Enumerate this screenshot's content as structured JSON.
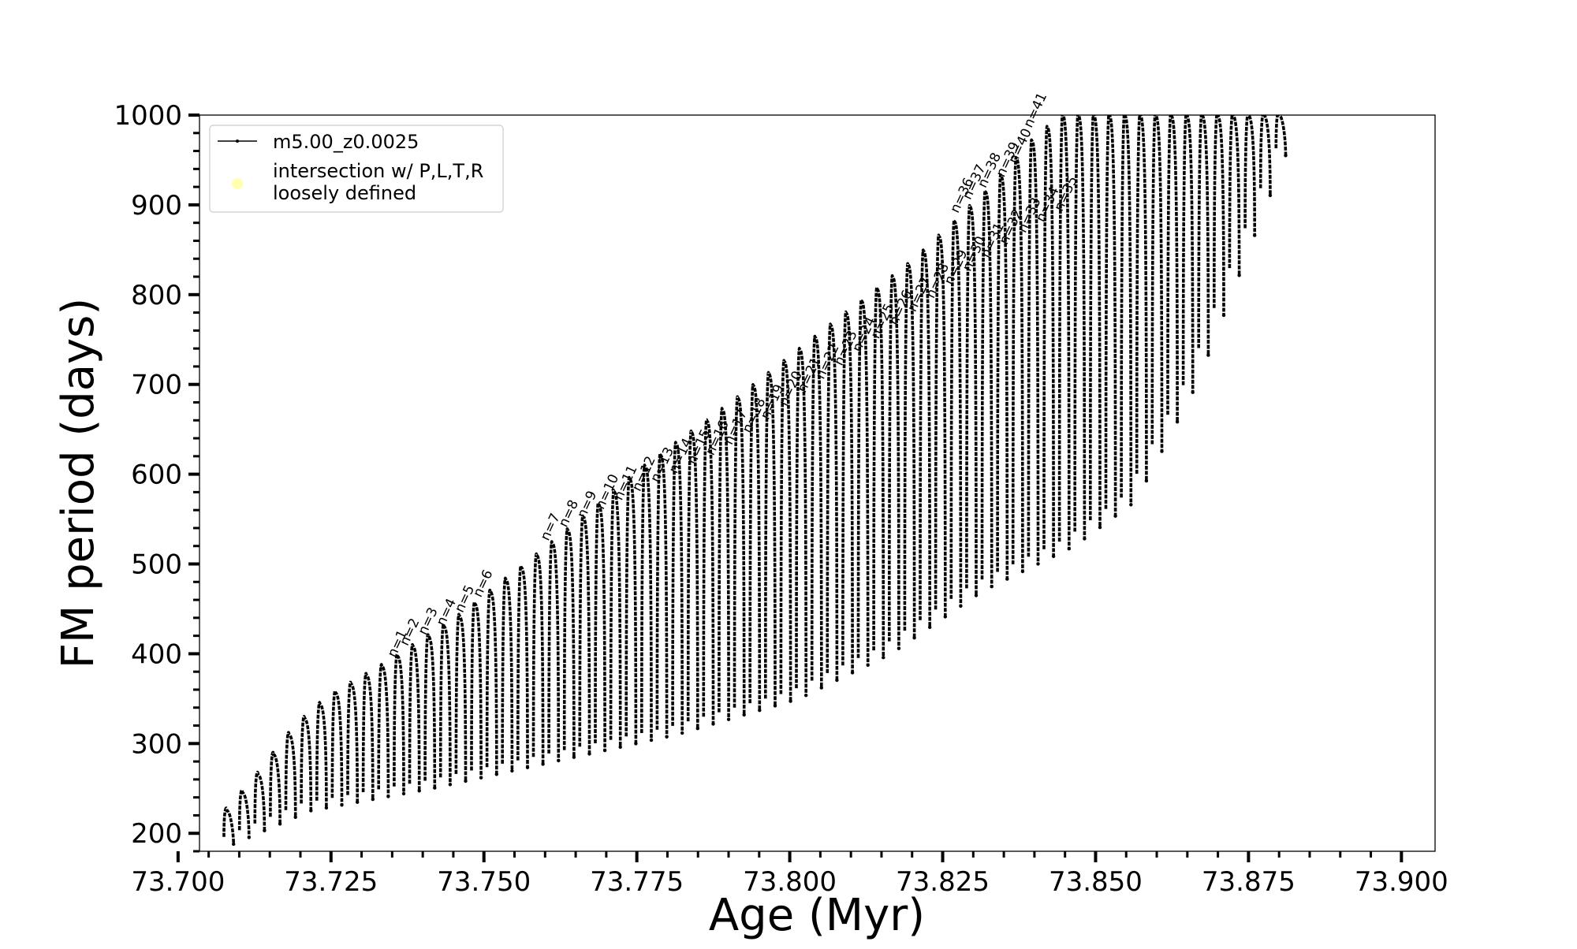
{
  "chart_data": {
    "type": "line",
    "title": "",
    "xlabel": "Age (Myr)",
    "ylabel": "FM period (days)",
    "xlim": [
      73.7035,
      73.9055
    ],
    "ylim": [
      180,
      1000
    ],
    "x_ticks": [
      73.7,
      73.725,
      73.75,
      73.775,
      73.8,
      73.825,
      73.85,
      73.875,
      73.9
    ],
    "x_tick_labels": [
      "73.700",
      "73.725",
      "73.750",
      "73.775",
      "73.800",
      "73.825",
      "73.850",
      "73.875",
      "73.900"
    ],
    "x_minor_step": 0.005,
    "y_ticks": [
      200,
      300,
      400,
      500,
      600,
      700,
      800,
      900,
      1000
    ],
    "y_tick_labels": [
      "200",
      "300",
      "400",
      "500",
      "600",
      "700",
      "800",
      "900",
      "1000"
    ],
    "y_minor_step": 20,
    "grid": false,
    "legend_position": "top-left",
    "legend": [
      {
        "label": "m5.00_z0.0025",
        "marker": "line-dot",
        "color": "#000000"
      },
      {
        "label": "intersection w/ P,L,T,R\nloosely defined",
        "marker": "circle",
        "color": "#ffff99"
      }
    ],
    "series": [
      {
        "name": "m5.00_z0.0025",
        "color": "#000000",
        "pulses": {
          "age_start": 73.7075,
          "age_end": 73.8795,
          "count": 69,
          "peak_anchors": [
            [
              73.7075,
              225
            ],
            [
              73.7125,
              265
            ],
            [
              73.7185,
              318
            ],
            [
              73.724,
              352
            ],
            [
              73.7325,
              385
            ],
            [
              73.745,
              440
            ],
            [
              73.76,
              520
            ],
            [
              73.775,
              605
            ],
            [
              73.79,
              680
            ],
            [
              73.805,
              760
            ],
            [
              73.82,
              840
            ],
            [
              73.833,
              925
            ],
            [
              73.8395,
              975
            ],
            [
              73.844,
              1000
            ],
            [
              73.8795,
              1000
            ]
          ],
          "trough_anchors": [
            [
              73.7075,
              188
            ],
            [
              73.72,
              225
            ],
            [
              73.74,
              250
            ],
            [
              73.76,
              280
            ],
            [
              73.78,
              310
            ],
            [
              73.8,
              350
            ],
            [
              73.815,
              400
            ],
            [
              73.83,
              470
            ],
            [
              73.845,
              520
            ],
            [
              73.855,
              570
            ],
            [
              73.865,
              700
            ],
            [
              73.8795,
              955
            ]
          ]
        }
      }
    ],
    "annotations": [
      {
        "text": "n=1",
        "x": 73.7355,
        "y": 395
      },
      {
        "text": "n=2",
        "x": 73.7375,
        "y": 408
      },
      {
        "text": "n=3",
        "x": 73.7405,
        "y": 420
      },
      {
        "text": "n=4",
        "x": 73.7435,
        "y": 430
      },
      {
        "text": "n=5",
        "x": 73.7465,
        "y": 445
      },
      {
        "text": "n=6",
        "x": 73.7495,
        "y": 462
      },
      {
        "text": "n=7",
        "x": 73.7605,
        "y": 525
      },
      {
        "text": "n=8",
        "x": 73.7635,
        "y": 540
      },
      {
        "text": "n=9",
        "x": 73.7665,
        "y": 550
      },
      {
        "text": "n=10",
        "x": 73.7695,
        "y": 560
      },
      {
        "text": "n=11",
        "x": 73.7725,
        "y": 570
      },
      {
        "text": "n=12",
        "x": 73.7755,
        "y": 580
      },
      {
        "text": "n=13",
        "x": 73.7785,
        "y": 590
      },
      {
        "text": "n=14",
        "x": 73.7815,
        "y": 600
      },
      {
        "text": "n=15",
        "x": 73.7845,
        "y": 610
      },
      {
        "text": "n=16",
        "x": 73.7875,
        "y": 620
      },
      {
        "text": "n=17",
        "x": 73.7905,
        "y": 632
      },
      {
        "text": "n=18",
        "x": 73.7935,
        "y": 645
      },
      {
        "text": "n=19",
        "x": 73.7965,
        "y": 660
      },
      {
        "text": "n=20",
        "x": 73.7995,
        "y": 675
      },
      {
        "text": "n=21",
        "x": 73.8025,
        "y": 690
      },
      {
        "text": "n=22",
        "x": 73.8055,
        "y": 705
      },
      {
        "text": "n=23",
        "x": 73.8085,
        "y": 720
      },
      {
        "text": "n=24",
        "x": 73.8115,
        "y": 735
      },
      {
        "text": "n=25",
        "x": 73.8145,
        "y": 750
      },
      {
        "text": "n=26",
        "x": 73.8175,
        "y": 765
      },
      {
        "text": "n=27",
        "x": 73.8205,
        "y": 780
      },
      {
        "text": "n=28",
        "x": 73.8235,
        "y": 795
      },
      {
        "text": "n=29",
        "x": 73.8265,
        "y": 810
      },
      {
        "text": "n=30",
        "x": 73.8295,
        "y": 825
      },
      {
        "text": "n=31",
        "x": 73.8325,
        "y": 840
      },
      {
        "text": "n=32",
        "x": 73.8355,
        "y": 855
      },
      {
        "text": "n=33",
        "x": 73.8385,
        "y": 868
      },
      {
        "text": "n=34",
        "x": 73.8415,
        "y": 880
      },
      {
        "text": "n=35",
        "x": 73.8445,
        "y": 892
      },
      {
        "text": "n=36",
        "x": 73.8275,
        "y": 890
      },
      {
        "text": "n=37",
        "x": 73.8295,
        "y": 905
      },
      {
        "text": "n=38",
        "x": 73.832,
        "y": 918
      },
      {
        "text": "n=39",
        "x": 73.835,
        "y": 930
      },
      {
        "text": "n=40",
        "x": 73.837,
        "y": 945
      },
      {
        "text": "n=41",
        "x": 73.8395,
        "y": 985
      }
    ]
  }
}
